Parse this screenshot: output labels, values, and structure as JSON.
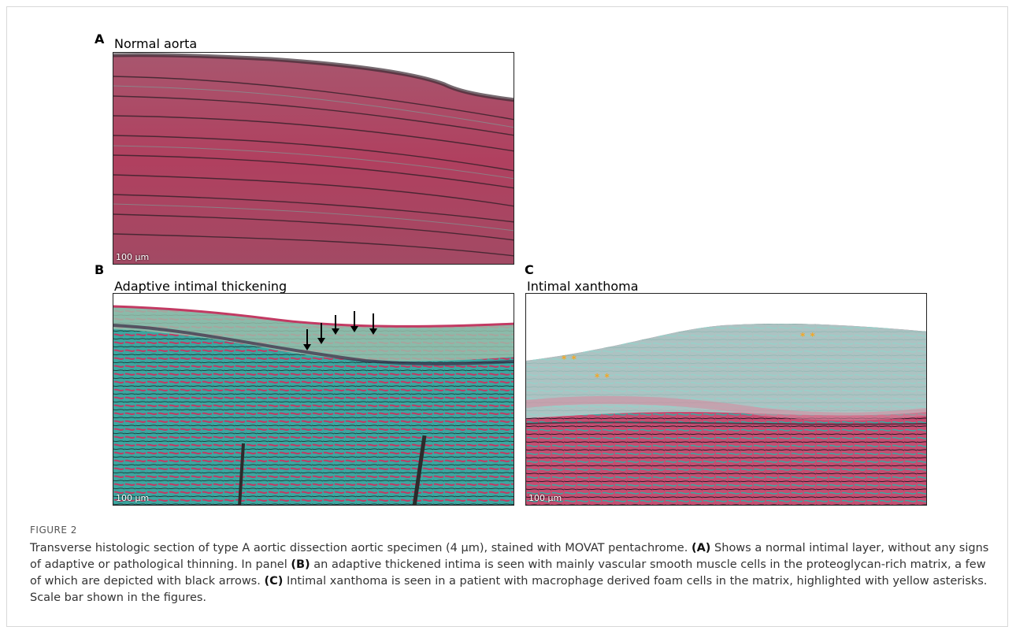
{
  "figure_label": "FIGURE 2",
  "panels": {
    "A": {
      "letter": "A",
      "title": "Normal aorta",
      "scale": "100 µm"
    },
    "B": {
      "letter": "B",
      "title": "Adaptive intimal thickening",
      "scale": "100 µm"
    },
    "C": {
      "letter": "C",
      "title": "Intimal xanthoma",
      "scale": "100 µm"
    }
  },
  "markers": {
    "star": "* *"
  },
  "caption": {
    "t1": "Transverse histologic section of type A aortic dissection aortic specimen (4 µm), stained with MOVAT pentachrome. ",
    "b1": "(A)",
    "t2": " Shows a normal intimal layer, without any signs of adaptive or pathological thinning. In panel ",
    "b2": "(B)",
    "t3": " an adaptive thickened intima is seen with mainly vascular smooth muscle cells in the proteoglycan-rich matrix, a few of which are depicted with black arrows. ",
    "b3": "(C)",
    "t4": " Intimal xanthoma is seen in a patient with macrophage derived foam cells in the matrix, highlighted with yellow asterisks. Scale bar shown in the figures."
  },
  "colors": {
    "stain_red": "#c23a63",
    "stain_teal": "#3bb0a8",
    "arrow": "#000000",
    "asterisk": "#f5a623"
  }
}
